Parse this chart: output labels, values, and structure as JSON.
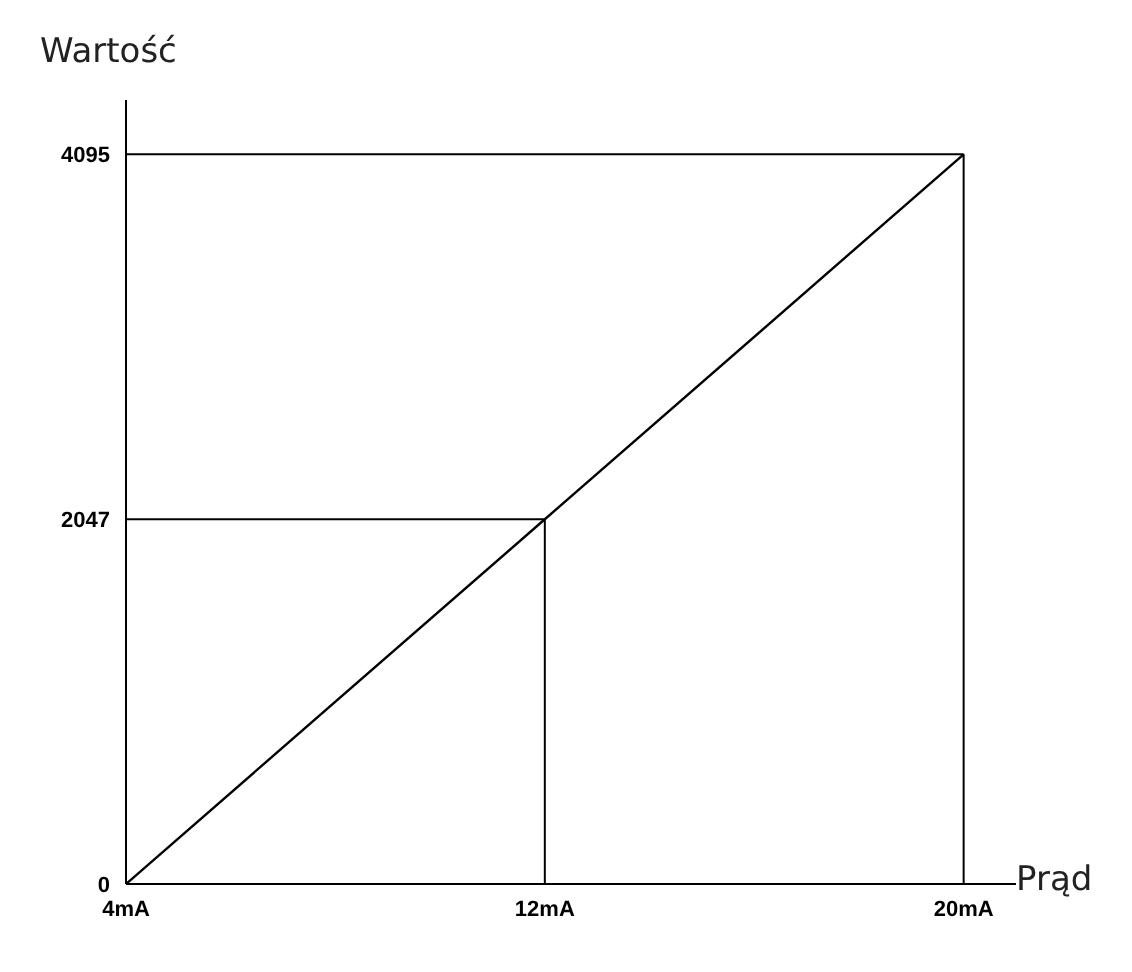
{
  "chart_data": {
    "type": "line",
    "xlabel": "Prąd",
    "ylabel": "Wartość",
    "x": [
      4,
      12,
      20
    ],
    "series": [
      {
        "color": "#000000",
        "values": [
          0,
          2047,
          4095
        ]
      }
    ],
    "xlim": [
      4,
      21
    ],
    "xticks": [
      {
        "value": 4,
        "label": "4mA"
      },
      {
        "value": 12,
        "label": "12mA"
      },
      {
        "value": 20,
        "label": "20mA"
      }
    ],
    "ylim": [
      0,
      4400
    ],
    "yticks": [
      0,
      2047,
      4095
    ],
    "ref_lines": [
      {
        "axis": "y",
        "value": 2047,
        "color": "#000000"
      },
      {
        "axis": "x",
        "value": 12,
        "color": "#000000"
      },
      {
        "axis": "y",
        "value": 4095,
        "color": "#000000"
      },
      {
        "axis": "x",
        "value": 20,
        "color": "#000000"
      }
    ],
    "grid": false,
    "legend": false,
    "marker": "none",
    "line_style": "solid"
  }
}
